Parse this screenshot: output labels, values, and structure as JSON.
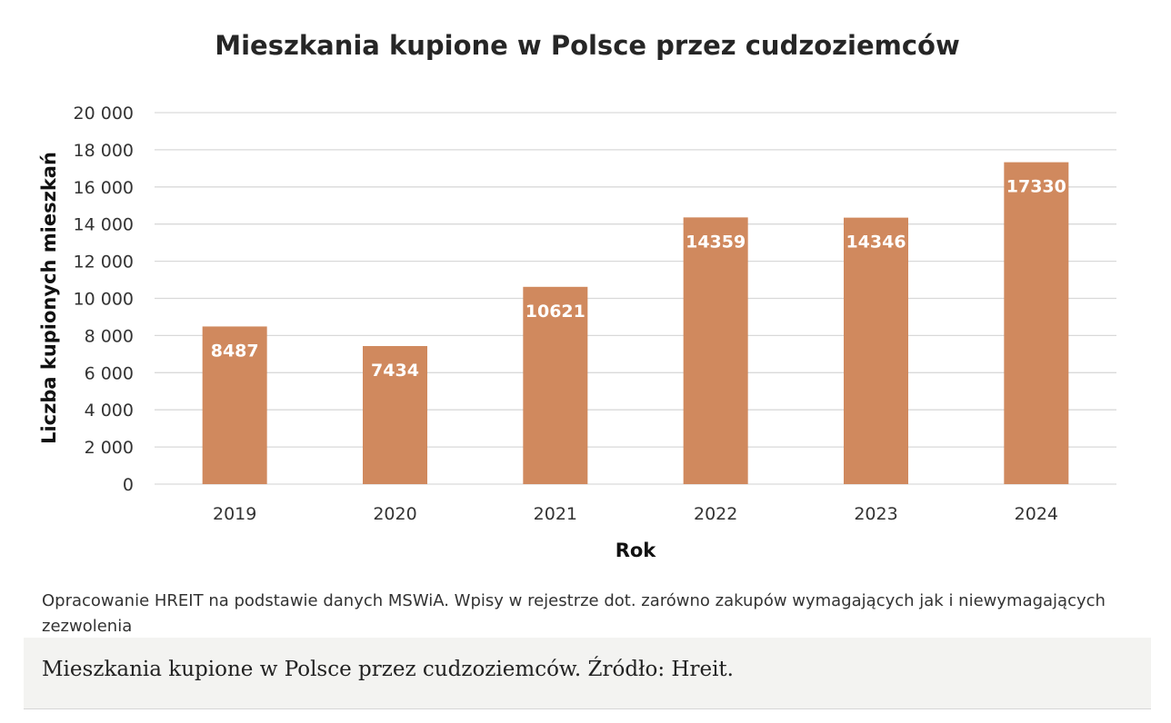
{
  "chart_data": {
    "type": "bar",
    "title": "Mieszkania kupione w Polsce przez cudzoziemców",
    "xlabel": "Rok",
    "ylabel": "Liczba kupionych mieszkań",
    "categories": [
      "2019",
      "2020",
      "2021",
      "2022",
      "2023",
      "2024"
    ],
    "values": [
      8487,
      7434,
      10621,
      14359,
      14346,
      17330
    ],
    "data_labels": [
      "8487",
      "7434",
      "10621",
      "14359",
      "14346",
      "17330"
    ],
    "ylim": [
      0,
      20000
    ],
    "yticks": [
      0,
      2000,
      4000,
      6000,
      8000,
      10000,
      12000,
      14000,
      16000,
      18000,
      20000
    ],
    "ytick_labels": [
      "0",
      "2 000",
      "4 000",
      "6 000",
      "8 000",
      "10 000",
      "12 000",
      "14 000",
      "16 000",
      "18 000",
      "20 000"
    ],
    "bar_color": "#d0895e",
    "grid": true,
    "legend": "none"
  },
  "note": "Opracowanie HREIT na podstawie danych MSWiA. Wpisy w rejestrze dot. zarówno zakupów wymagających jak i niewymagających zezwolenia",
  "caption": "Mieszkania kupione w Polsce przez cudzoziemców. Źródło: Hreit."
}
